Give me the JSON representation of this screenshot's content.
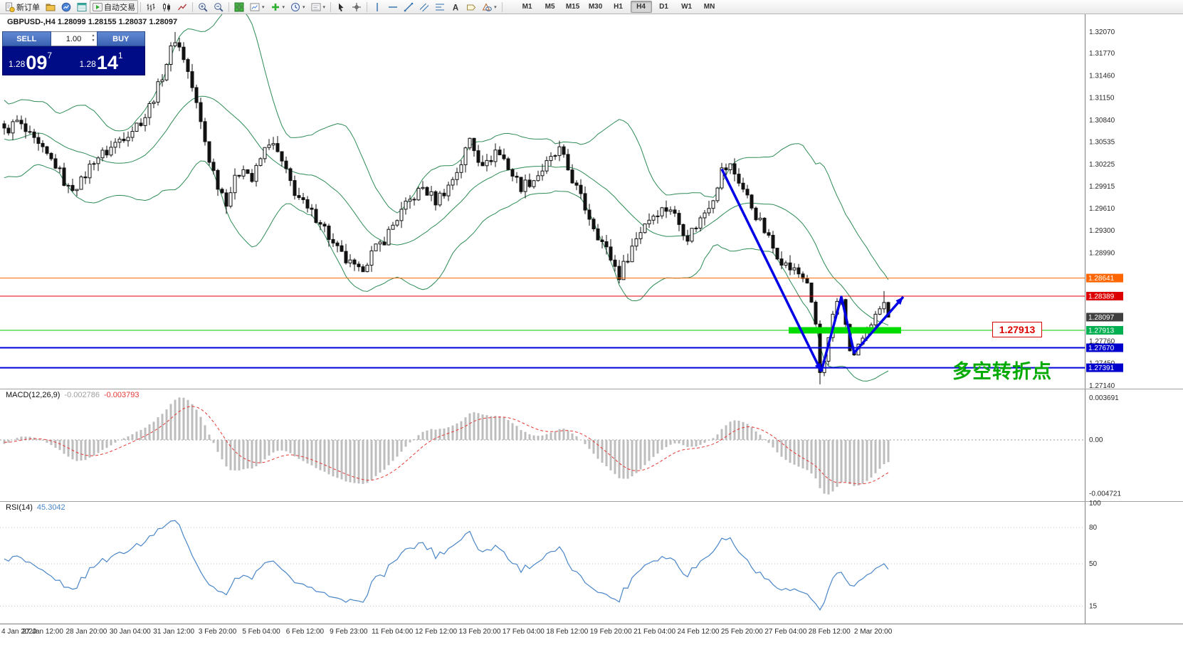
{
  "toolbar": {
    "buttons": [
      {
        "name": "new-order-button",
        "label": "新订单",
        "icon": "new-order-icon"
      },
      {
        "name": "profile-button",
        "icon": "profile-icon"
      },
      {
        "name": "charts-button",
        "icon": "charts-icon"
      },
      {
        "name": "data-window-button",
        "icon": "data-window-icon"
      },
      {
        "name": "autotrade-button",
        "label": "自动交易",
        "icon": "autotrade-icon",
        "toggled": true
      },
      {
        "sep": true
      },
      {
        "name": "bar-chart-button",
        "icon": "bars-icon"
      },
      {
        "name": "candle-chart-button",
        "icon": "candles-icon"
      },
      {
        "name": "line-chart-button",
        "icon": "line-chart-icon"
      },
      {
        "sep": true
      },
      {
        "name": "zoom-in-button",
        "icon": "zoom-in-icon"
      },
      {
        "name": "zoom-out-button",
        "icon": "zoom-out-icon"
      },
      {
        "sep": true
      },
      {
        "name": "tile-windows-button",
        "icon": "tile-windows-icon"
      },
      {
        "name": "new-chart-button",
        "icon": "new-chart-icon",
        "dropdown": true
      },
      {
        "name": "indicators-button",
        "icon": "indicators-icon",
        "dropdown": true
      },
      {
        "name": "periods-button",
        "icon": "periods-icon",
        "dropdown": true
      },
      {
        "name": "templates-button",
        "icon": "templates-icon",
        "dropdown": true
      },
      {
        "sep": true
      },
      {
        "name": "cursor-button",
        "icon": "cursor-icon"
      },
      {
        "name": "crosshair-button",
        "icon": "crosshair-icon"
      },
      {
        "sep": true
      },
      {
        "name": "vertical-line-button",
        "icon": "vline-icon"
      },
      {
        "name": "horizontal-line-button",
        "icon": "hline-icon"
      },
      {
        "name": "trendline-button",
        "icon": "trendline-icon"
      },
      {
        "name": "channel-button",
        "icon": "channel-icon"
      },
      {
        "name": "fibonacci-button",
        "icon": "fibo-icon"
      },
      {
        "name": "text-button",
        "icon": "text-icon"
      },
      {
        "name": "label-button",
        "icon": "label-icon"
      },
      {
        "name": "shapes-button",
        "icon": "shapes-icon",
        "dropdown": true
      },
      {
        "sep": true
      }
    ],
    "timeframes": {
      "items": [
        "M1",
        "M5",
        "M15",
        "M30",
        "H1",
        "H4",
        "D1",
        "W1",
        "MN"
      ],
      "active": "H4"
    }
  },
  "chart": {
    "symbol_info": "GBPUSD-,H4 1.28099 1.28155 1.28037 1.28097"
  },
  "trade_panel": {
    "sell_label": "SELL",
    "buy_label": "BUY",
    "volume": "1.00",
    "sell_price": {
      "prefix": "1.28",
      "big": "09",
      "sup": "7"
    },
    "buy_price": {
      "prefix": "1.28",
      "big": "14",
      "sup": "1"
    }
  },
  "chart_data": {
    "type": "candlestick",
    "symbol": "GBPUSD-",
    "timeframe": "H4",
    "ohlc_current": {
      "open": 1.28099,
      "high": 1.28155,
      "low": 1.28037,
      "close": 1.28097
    },
    "candles": {
      "count": 208,
      "price_path": [
        [
          0,
          1.3068
        ],
        [
          3,
          1.3082
        ],
        [
          6,
          1.306
        ],
        [
          9,
          1.304
        ],
        [
          12,
          1.3022
        ],
        [
          15,
          1.2988
        ],
        [
          18,
          1.2998
        ],
        [
          21,
          1.303
        ],
        [
          24,
          1.304
        ],
        [
          27,
          1.3058
        ],
        [
          30,
          1.3072
        ],
        [
          33,
          1.309
        ],
        [
          36,
          1.313
        ],
        [
          38,
          1.3165
        ],
        [
          40,
          1.3198
        ],
        [
          42,
          1.3172
        ],
        [
          44,
          1.313
        ],
        [
          46,
          1.308
        ],
        [
          48,
          1.303
        ],
        [
          50,
          1.2995
        ],
        [
          52,
          1.2972
        ],
        [
          54,
          1.3
        ],
        [
          56,
          1.3022
        ],
        [
          58,
          1.3
        ],
        [
          60,
          1.303
        ],
        [
          62,
          1.3055
        ],
        [
          64,
          1.3038
        ],
        [
          66,
          1.301
        ],
        [
          68,
          1.2985
        ],
        [
          71,
          1.2958
        ],
        [
          74,
          1.2945
        ],
        [
          77,
          1.291
        ],
        [
          80,
          1.2888
        ],
        [
          83,
          1.2872
        ],
        [
          86,
          1.2898
        ],
        [
          89,
          1.2918
        ],
        [
          92,
          1.2948
        ],
        [
          95,
          1.2972
        ],
        [
          98,
          1.299
        ],
        [
          101,
          1.2972
        ],
        [
          104,
          1.2992
        ],
        [
          107,
          1.3025
        ],
        [
          109,
          1.3058
        ],
        [
          111,
          1.3032
        ],
        [
          113,
          1.3022
        ],
        [
          115,
          1.3042
        ],
        [
          117,
          1.303
        ],
        [
          119,
          1.3008
        ],
        [
          121,
          1.2992
        ],
        [
          124,
          1.3002
        ],
        [
          127,
          1.3022
        ],
        [
          130,
          1.3042
        ],
        [
          133,
          1.3002
        ],
        [
          136,
          1.2962
        ],
        [
          139,
          1.2925
        ],
        [
          142,
          1.2892
        ],
        [
          144,
          1.2868
        ],
        [
          147,
          1.2908
        ],
        [
          150,
          1.2942
        ],
        [
          153,
          1.2958
        ],
        [
          156,
          1.2962
        ],
        [
          158,
          1.294
        ],
        [
          160,
          1.2922
        ],
        [
          163,
          1.2946
        ],
        [
          166,
          1.2978
        ],
        [
          168,
          1.3014
        ],
        [
          170,
          1.302
        ],
        [
          172,
          1.3
        ],
        [
          174,
          1.2976
        ],
        [
          176,
          1.2952
        ],
        [
          178,
          1.293
        ],
        [
          180,
          1.2906
        ],
        [
          183,
          1.2882
        ],
        [
          186,
          1.287
        ],
        [
          188,
          1.2858
        ],
        [
          190,
          1.28
        ],
        [
          191,
          1.2732
        ],
        [
          192,
          1.2748
        ],
        [
          193,
          1.278
        ],
        [
          194,
          1.2812
        ],
        [
          195,
          1.283
        ],
        [
          196,
          1.2834
        ],
        [
          197,
          1.28
        ],
        [
          198,
          1.2764
        ],
        [
          199,
          1.2756
        ],
        [
          200,
          1.2772
        ],
        [
          201,
          1.278
        ],
        [
          202,
          1.2792
        ],
        [
          203,
          1.28
        ],
        [
          204,
          1.2812
        ],
        [
          205,
          1.2822
        ],
        [
          206,
          1.283
        ],
        [
          207,
          1.28097
        ]
      ],
      "wick_highs": [
        [
          40,
          1.3207
        ],
        [
          206,
          1.2846
        ]
      ],
      "wick_lows": [
        [
          191,
          1.2716
        ]
      ],
      "up_color": "#ffffff",
      "down_color": "#111111",
      "border_color": "#111111"
    },
    "bollinger": {
      "period": 20,
      "deviation": 2,
      "color": "#2e8b57"
    },
    "hlines": [
      {
        "label": "1.28641",
        "price": 1.28641,
        "color": "#ff6600",
        "width": 1
      },
      {
        "label": "1.28389",
        "price": 1.28389,
        "color": "#dd0000",
        "width": 1
      },
      {
        "label": "1.27913",
        "price": 1.27913,
        "color": "#00cc00",
        "width": 1
      },
      {
        "label": "1.27670",
        "price": 1.2767,
        "color": "#0000dd",
        "width": 2
      },
      {
        "label": "1.27391",
        "price": 1.27391,
        "color": "#0000dd",
        "width": 2
      }
    ],
    "highlight_bar": {
      "price": 1.27913,
      "start_idx": 184,
      "end_idx": 210,
      "color": "#00dc00"
    },
    "arrows": {
      "color": "#0000e6",
      "segments": [
        [
          [
            168,
            1.3016
          ],
          [
            191.3,
            1.2734
          ]
        ],
        [
          [
            191.3,
            1.2734
          ],
          [
            196,
            1.2838
          ],
          [
            199,
            1.276
          ],
          [
            210.5,
            1.2838
          ]
        ]
      ]
    },
    "price_axis": {
      "plain_labels": [
        [
          "1.32070",
          1.3207
        ],
        [
          "1.31770",
          1.3177
        ],
        [
          "1.31460",
          1.3146
        ],
        [
          "1.31150",
          1.3115
        ],
        [
          "1.30840",
          1.3084
        ],
        [
          "1.30535",
          1.30535
        ],
        [
          "1.30225",
          1.30225
        ],
        [
          "1.29915",
          1.29915
        ],
        [
          "1.29610",
          1.2961
        ],
        [
          "1.29300",
          1.293
        ],
        [
          "1.28990",
          1.2899
        ],
        [
          "1.27760",
          1.2776
        ],
        [
          "1.27450",
          1.2745
        ],
        [
          "1.27140",
          1.2714
        ]
      ],
      "visible_range": [
        1.2714,
        1.3232
      ]
    },
    "scale_tags": [
      {
        "text": "1.28641",
        "price": 1.28641,
        "bg": "#ff6600"
      },
      {
        "text": "1.28389",
        "price": 1.28389,
        "bg": "#dd0000"
      },
      {
        "text": "1.28097",
        "price": 1.28097,
        "bg": "#404040"
      },
      {
        "text": "1.27913",
        "price": 1.27913,
        "bg": "#00b050"
      },
      {
        "text": "1.27670",
        "price": 1.2767,
        "bg": "#0000cc"
      },
      {
        "text": "1.27391",
        "price": 1.27391,
        "bg": "#0000cc"
      }
    ],
    "macd": {
      "label": "MACD(12,26,9)",
      "value_main": "-0.002786",
      "value_signal": "-0.003793",
      "axis_labels": [
        [
          "0.003691",
          0.003691
        ],
        [
          "0.00",
          0
        ],
        [
          "-0.004721",
          -0.004721
        ]
      ],
      "hist_color": "#bdbdbd",
      "signal_color": "#e53935"
    },
    "rsi": {
      "label": "RSI(14)",
      "value": "45.3042",
      "levels": [
        [
          "100",
          100
        ],
        [
          "80",
          80
        ],
        [
          "50",
          50
        ],
        [
          "15",
          15
        ]
      ],
      "color": "#4a86c8"
    },
    "time_labels": [
      "4 Jan 2020",
      "27 Jan 12:00",
      "28 Jan 20:00",
      "30 Jan 04:00",
      "31 Jan 12:00",
      "3 Feb 20:00",
      "5 Feb 04:00",
      "6 Feb 12:00",
      "9 Feb 23:00",
      "11 Feb 04:00",
      "12 Feb 12:00",
      "13 Feb 20:00",
      "17 Feb 04:00",
      "18 Feb 12:00",
      "19 Feb 20:00",
      "21 Feb 04:00",
      "24 Feb 12:00",
      "25 Feb 20:00",
      "27 Feb 04:00",
      "28 Feb 12:00",
      "2 Mar 20:00"
    ],
    "annotation": {
      "text": "多空转折点",
      "color": "#00aa00"
    },
    "price_tag": {
      "text": "1.27913",
      "color": "#dd0000"
    }
  }
}
